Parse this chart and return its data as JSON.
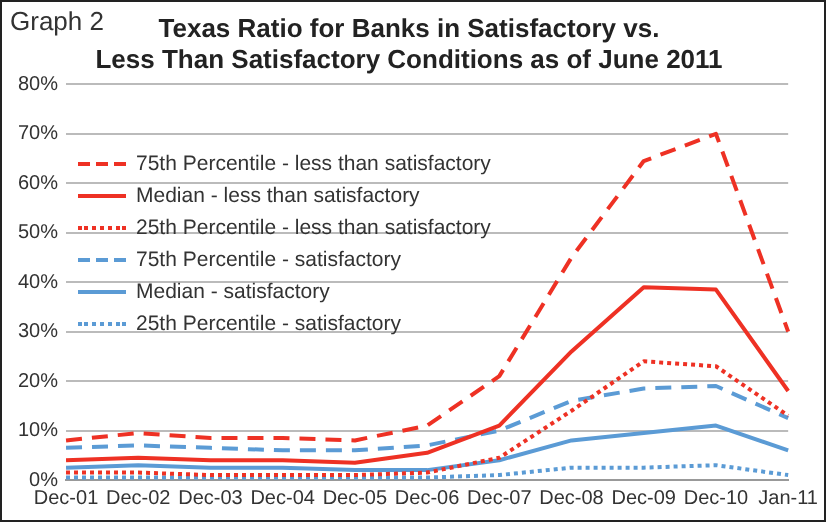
{
  "chart_data": {
    "type": "line",
    "title": [
      "Texas Ratio for Banks in Satisfactory vs.",
      "Less Than Satisfactory Conditions as of June 2011"
    ],
    "annotations": [
      "Graph 2"
    ],
    "categories": [
      "Dec-01",
      "Dec-02",
      "Dec-03",
      "Dec-04",
      "Dec-05",
      "Dec-06",
      "Dec-07",
      "Dec-08",
      "Dec-09",
      "Dec-10",
      "Jan-11"
    ],
    "series": [
      {
        "name": "75th Percentile - less than satisfactory",
        "color": "#ee3124",
        "line_style": "dashed",
        "values": [
          8,
          9.5,
          8.5,
          8.5,
          8,
          11,
          21,
          45,
          64.5,
          70,
          30
        ]
      },
      {
        "name": "Median - less than satisfactory",
        "color": "#ee3124",
        "line_style": "solid",
        "values": [
          4,
          4.5,
          4,
          4,
          3.5,
          5.5,
          11,
          26,
          39,
          38.5,
          18
        ]
      },
      {
        "name": "25th Percentile - less than satisfactory",
        "color": "#ee3124",
        "line_style": "dotted",
        "values": [
          1.5,
          1.5,
          1,
          1,
          1,
          1.5,
          4.5,
          14,
          24,
          23,
          13
        ]
      },
      {
        "name": "75th Percentile - satisfactory",
        "color": "#5b9bd5",
        "line_style": "dashed",
        "values": [
          6.5,
          7,
          6.5,
          6,
          6,
          7,
          10,
          16,
          18.5,
          19,
          12.5
        ]
      },
      {
        "name": "Median - satisfactory",
        "color": "#5b9bd5",
        "line_style": "solid",
        "values": [
          2.5,
          3,
          2.5,
          2.5,
          2,
          2,
          4,
          8,
          9.5,
          11,
          6
        ]
      },
      {
        "name": "25th Percentile - satisfactory",
        "color": "#5b9bd5",
        "line_style": "dotted",
        "values": [
          0.5,
          0.5,
          0.5,
          0.5,
          0.5,
          0.5,
          1,
          2.5,
          2.5,
          3,
          1
        ]
      }
    ],
    "ylim": [
      0,
      80
    ],
    "yticks": [
      {
        "value": 0,
        "label": "0%"
      },
      {
        "value": 10,
        "label": "10%"
      },
      {
        "value": 20,
        "label": "20%"
      },
      {
        "value": 30,
        "label": "30%"
      },
      {
        "value": 40,
        "label": "40%"
      },
      {
        "value": 50,
        "label": "50%"
      },
      {
        "value": 60,
        "label": "60%"
      },
      {
        "value": 70,
        "label": "70%"
      },
      {
        "value": 80,
        "label": "80%"
      }
    ],
    "grid": "y",
    "legend": "top left",
    "marker": "none"
  }
}
